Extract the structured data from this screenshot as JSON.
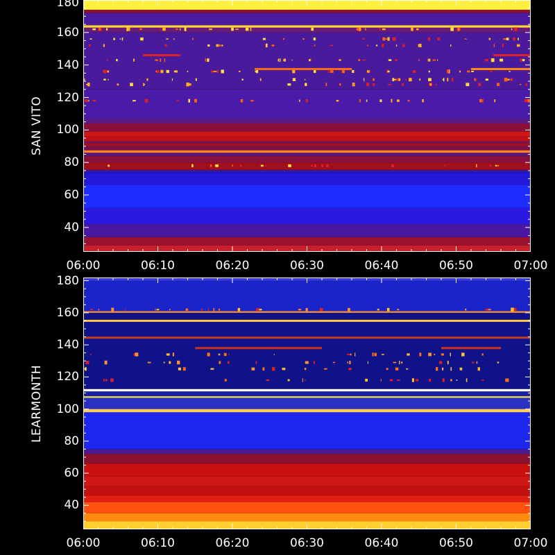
{
  "chart_data": [
    {
      "type": "heatmap",
      "title": "",
      "ylabel": "SAN VITO",
      "xlabel": "",
      "x_ticks": [
        "06:00",
        "06:10",
        "06:20",
        "06:30",
        "06:40",
        "06:50",
        "07:00"
      ],
      "y_ticks": [
        40,
        60,
        80,
        100,
        120,
        140,
        160,
        180
      ],
      "xlim": [
        "06:00",
        "07:00"
      ],
      "ylim": [
        25,
        180
      ],
      "bands": [
        {
          "from": 25,
          "to": 29,
          "color": "#c8202a"
        },
        {
          "from": 29,
          "to": 34,
          "color": "#9a1030"
        },
        {
          "from": 34,
          "to": 42,
          "color": "#4a18a0"
        },
        {
          "from": 42,
          "to": 52,
          "color": "#2a1ae0"
        },
        {
          "from": 52,
          "to": 66,
          "color": "#1e2cff"
        },
        {
          "from": 66,
          "to": 74,
          "color": "#2418d8"
        },
        {
          "from": 74,
          "to": 75.5,
          "color": "#3a189a"
        },
        {
          "from": 75.5,
          "to": 80,
          "color": "#a0101c"
        },
        {
          "from": 80,
          "to": 84,
          "color": "#8a1040"
        },
        {
          "from": 84,
          "to": 86,
          "color": "#5a1878"
        },
        {
          "from": 86,
          "to": 87.5,
          "color": "#ff8020"
        },
        {
          "from": 87.5,
          "to": 90,
          "color": "#7a1050"
        },
        {
          "from": 90,
          "to": 92,
          "color": "#a01020"
        },
        {
          "from": 92,
          "to": 93,
          "color": "#6a1868"
        },
        {
          "from": 93,
          "to": 96,
          "color": "#c01018"
        },
        {
          "from": 96,
          "to": 99,
          "color": "#d01818"
        },
        {
          "from": 99,
          "to": 104,
          "color": "#8a1038"
        },
        {
          "from": 104,
          "to": 107,
          "color": "#5a1a88"
        },
        {
          "from": 107,
          "to": 125,
          "color": "#4a1aa8"
        },
        {
          "from": 125,
          "to": 160,
          "color": "#4a1a9c"
        },
        {
          "from": 160,
          "to": 163,
          "color": "#6a1a78"
        },
        {
          "from": 163,
          "to": 164.5,
          "color": "#ffd040"
        },
        {
          "from": 164.5,
          "to": 172,
          "color": "#4a1aa0"
        },
        {
          "from": 172,
          "to": 174,
          "color": "#8a1030"
        },
        {
          "from": 174,
          "to": 180,
          "color": "#fff040"
        }
      ],
      "lines": [
        {
          "at": 137.5,
          "from": "06:23",
          "to": "06:36",
          "color": "#ff6a10"
        },
        {
          "at": 137.5,
          "from": "06:52",
          "to": "07:00",
          "color": "#ff8a10"
        },
        {
          "at": 146,
          "from": "06:08",
          "to": "06:13",
          "color": "#e02020"
        },
        {
          "at": 146,
          "from": "06:55",
          "to": "07:00",
          "color": "#e02020"
        }
      ]
    },
    {
      "type": "heatmap",
      "title": "",
      "ylabel": "LEARMONTH",
      "xlabel": "",
      "x_ticks": [
        "06:00",
        "06:10",
        "06:20",
        "06:30",
        "06:40",
        "06:50",
        "07:00"
      ],
      "y_ticks": [
        40,
        60,
        80,
        100,
        120,
        140,
        160,
        180
      ],
      "xlim": [
        "06:00",
        "07:00"
      ],
      "ylim": [
        25,
        182
      ],
      "bands": [
        {
          "from": 25,
          "to": 30,
          "color": "#ffd030"
        },
        {
          "from": 30,
          "to": 35,
          "color": "#ff8a10"
        },
        {
          "from": 35,
          "to": 42,
          "color": "#ff5010"
        },
        {
          "from": 42,
          "to": 46,
          "color": "#e02010"
        },
        {
          "from": 46,
          "to": 52,
          "color": "#c01010"
        },
        {
          "from": 52,
          "to": 58,
          "color": "#d01818"
        },
        {
          "from": 58,
          "to": 66,
          "color": "#c81010"
        },
        {
          "from": 66,
          "to": 72,
          "color": "#8a1030"
        },
        {
          "from": 72,
          "to": 75,
          "color": "#4a1a90"
        },
        {
          "from": 75,
          "to": 98,
          "color": "#1c28f0"
        },
        {
          "from": 98,
          "to": 100,
          "color": "#ffd060"
        },
        {
          "from": 100,
          "to": 107,
          "color": "#2a30c0"
        },
        {
          "from": 107,
          "to": 108,
          "color": "#f0e060"
        },
        {
          "from": 108,
          "to": 111,
          "color": "#1a20a0"
        },
        {
          "from": 111,
          "to": 112.5,
          "color": "#ffffff"
        },
        {
          "from": 112.5,
          "to": 160,
          "color": "#10128a"
        },
        {
          "from": 160,
          "to": 161,
          "color": "#ff9030"
        },
        {
          "from": 161,
          "to": 180,
          "color": "#1a24c8"
        },
        {
          "from": 180,
          "to": 182,
          "color": "#3a38e0"
        }
      ],
      "lines": [
        {
          "at": 155,
          "from": "06:00",
          "to": "07:00",
          "color": "#ffc840"
        },
        {
          "at": 144.5,
          "from": "06:00",
          "to": "07:00",
          "color": "#c04020"
        },
        {
          "at": 138,
          "from": "06:15",
          "to": "06:32",
          "color": "#d03020"
        },
        {
          "at": 138,
          "from": "06:48",
          "to": "06:56",
          "color": "#d03020"
        }
      ]
    }
  ]
}
